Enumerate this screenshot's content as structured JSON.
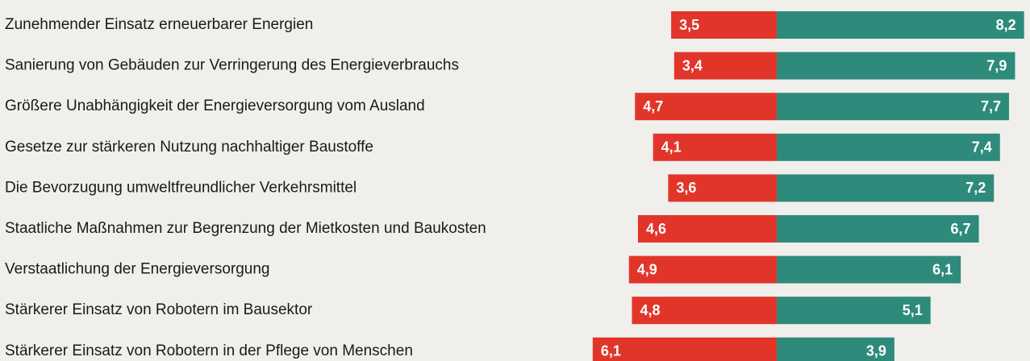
{
  "chart_data": {
    "type": "diverging-bar",
    "categories": [
      "Zunehmender Einsatz erneuerbarer Energien",
      "Sanierung von Gebäuden zur Verringerung des Energieverbrauchs",
      "Größere Unabhängigkeit der Energieversorgung vom Ausland",
      "Gesetze zur stärkeren Nutzung nachhaltiger Baustoffe",
      "Die Bevorzugung umweltfreundlicher Verkehrsmittel",
      "Staatliche Maßnahmen zur Begrenzung der Mietkosten und Baukosten",
      "Verstaatlichung der Energieversorgung",
      "Stärkerer Einsatz von Robotern im Bausektor",
      "Stärkerer Einsatz von Robotern in der Pflege von Menschen"
    ],
    "series": [
      {
        "color": "#e2352a",
        "values": [
          3.5,
          3.4,
          4.7,
          4.1,
          3.6,
          4.6,
          4.9,
          4.8,
          6.1
        ],
        "value_labels": [
          "3,5",
          "3,4",
          "4,7",
          "4,1",
          "3,6",
          "4,6",
          "4,9",
          "4,8",
          "6,1"
        ]
      },
      {
        "color": "#2e8b7c",
        "values": [
          8.2,
          7.9,
          7.7,
          7.4,
          7.2,
          6.7,
          6.1,
          5.1,
          3.9
        ],
        "value_labels": [
          "8,2",
          "7,9",
          "7,7",
          "7,4",
          "7,2",
          "6,7",
          "6,1",
          "5,1",
          "3,9"
        ]
      }
    ]
  }
}
